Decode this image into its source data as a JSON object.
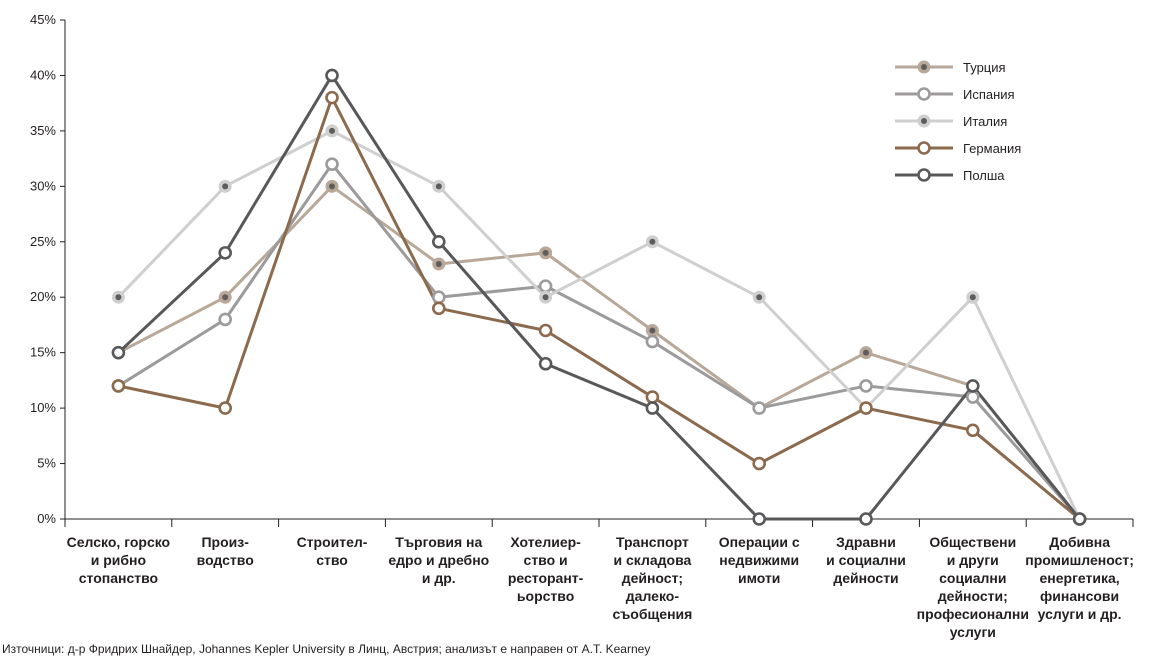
{
  "chart_data": {
    "type": "line",
    "ylim": [
      0,
      45
    ],
    "yticks": [
      "0%",
      "5%",
      "10%",
      "15%",
      "20%",
      "25%",
      "30%",
      "35%",
      "40%",
      "45%"
    ],
    "categories": [
      [
        "Селско, горско",
        "и рибно",
        "стопанство"
      ],
      [
        "Произ-",
        "водство"
      ],
      [
        "Строител-",
        "ство"
      ],
      [
        "Търговия на",
        "едро и дребно",
        "и др."
      ],
      [
        "Хотелиер-",
        "ство и",
        "ресторант-",
        "ьорство"
      ],
      [
        "Транспорт",
        "и складова",
        "дейност;",
        "далеко-",
        "съобщения"
      ],
      [
        "Операции с",
        "недвижими",
        "имоти"
      ],
      [
        "Здравни",
        "и социални",
        "дейности"
      ],
      [
        "Обществени",
        "и други",
        "социални",
        "дейности;",
        "професионални",
        "услуги"
      ],
      [
        "Добивна",
        "промишленост;",
        "енергетика,",
        "финансови",
        "услуги и др."
      ]
    ],
    "series": [
      {
        "name": "Турция",
        "color": "#b9a898",
        "style": "dot",
        "values": [
          15,
          20,
          30,
          23,
          24,
          17,
          10,
          15,
          12,
          0
        ]
      },
      {
        "name": "Испания",
        "color": "#9c9a9b",
        "style": "ring",
        "values": [
          12,
          18,
          32,
          20,
          21,
          16,
          10,
          12,
          11,
          0
        ]
      },
      {
        "name": "Италия",
        "color": "#cfcfcf",
        "style": "dot",
        "values": [
          20,
          30,
          35,
          30,
          20,
          25,
          20,
          10,
          20,
          0
        ]
      },
      {
        "name": "Германия",
        "color": "#8b6a4e",
        "style": "ring",
        "values": [
          12,
          10,
          38,
          19,
          17,
          11,
          5,
          10,
          8,
          0
        ]
      },
      {
        "name": "Полша",
        "color": "#58585a",
        "style": "ring",
        "values": [
          15,
          24,
          40,
          25,
          14,
          10,
          0,
          0,
          12,
          0
        ]
      }
    ],
    "grid": false,
    "legend_position": "top-right"
  },
  "source_text": "Източници: д-р Фридрих Шнайдер, Johannes Kepler University в Линц, Австрия; анализът е направен от A.T. Kearney"
}
